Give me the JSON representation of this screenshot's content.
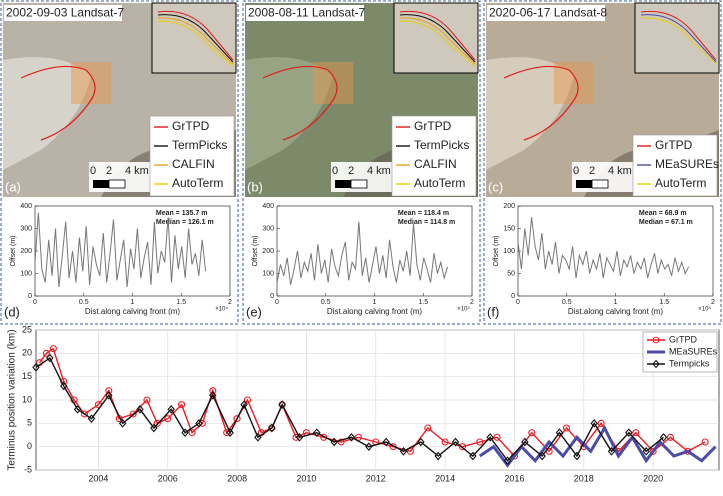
{
  "image_panels": [
    {
      "caption": "2002-09-03 Landsat-7",
      "label": "(a)",
      "scale_labels": [
        "0",
        "2",
        "4 km"
      ],
      "legend": [
        {
          "name": "GrTPD",
          "color": "#e41a1c"
        },
        {
          "name": "TermPicks",
          "color": "#111111"
        },
        {
          "name": "CALFIN",
          "color": "#e8a317"
        },
        {
          "name": "AutoTerm",
          "color": "#e6d200"
        }
      ]
    },
    {
      "caption": "2008-08-11 Landsat-7",
      "label": "(b)",
      "scale_labels": [
        "0",
        "2",
        "4 km"
      ],
      "legend": [
        {
          "name": "GrTPD",
          "color": "#e41a1c"
        },
        {
          "name": "TermPicks",
          "color": "#111111"
        },
        {
          "name": "CALFIN",
          "color": "#e8a317"
        },
        {
          "name": "AutoTerm",
          "color": "#e6d200"
        }
      ]
    },
    {
      "caption": "2020-06-17 Landsat-8",
      "label": "(c)",
      "scale_labels": [
        "0",
        "2",
        "4 km"
      ],
      "legend": [
        {
          "name": "GrTPD",
          "color": "#e41a1c"
        },
        {
          "name": "MEaSUREs",
          "color": "#4b4ba8"
        },
        {
          "name": "AutoTerm",
          "color": "#e6d200"
        }
      ]
    }
  ],
  "chart_data": [
    {
      "type": "line",
      "panel_label": "(d)",
      "x_label": "Dist.along calving front (m)",
      "y_label": "Offset (m)",
      "x_multiplier": "×10⁴",
      "annotations": [
        "Mean = 135.7 m",
        "Median = 126.1 m"
      ],
      "color": "#777777",
      "xlim": [
        0,
        20000
      ],
      "xticks": [
        0,
        {
          "value": 5000,
          "label": "0.5"
        },
        {
          "value": 10000,
          "label": "1"
        },
        {
          "value": 15000,
          "label": "1.5"
        },
        {
          "value": 20000,
          "label": "2"
        }
      ],
      "ylim": [
        0,
        400
      ],
      "yticks": [
        0,
        100,
        200,
        300,
        400
      ],
      "x": [
        0,
        350,
        700,
        1050,
        1400,
        1750,
        2100,
        2450,
        2800,
        3150,
        3500,
        3850,
        4200,
        4550,
        4900,
        5250,
        5600,
        5950,
        6300,
        6650,
        7000,
        7350,
        7700,
        8050,
        8400,
        8750,
        9100,
        9450,
        9800,
        10150,
        10500,
        10850,
        11200,
        11550,
        11900,
        12250,
        12600,
        12950,
        13300,
        13650,
        14000,
        14350,
        14700,
        15050,
        15400,
        15750,
        16100,
        16450,
        16800,
        17150,
        17500
      ],
      "values": [
        150,
        370,
        120,
        60,
        250,
        90,
        300,
        40,
        180,
        330,
        80,
        200,
        60,
        260,
        110,
        310,
        50,
        220,
        140,
        90,
        280,
        60,
        190,
        340,
        70,
        160,
        250,
        40,
        210,
        120,
        300,
        80,
        170,
        240,
        50,
        330,
        100,
        200,
        150,
        350,
        60,
        270,
        120,
        220,
        80,
        300,
        140,
        190,
        90,
        250,
        110
      ]
    },
    {
      "type": "line",
      "panel_label": "(e)",
      "x_label": "Dist.along calving front (m)",
      "y_label": "Offset (m)",
      "x_multiplier": "×10⁴",
      "annotations": [
        "Mean = 118.4 m",
        "Median = 114.8 m"
      ],
      "color": "#777777",
      "xlim": [
        0,
        20000
      ],
      "xticks": [
        0,
        {
          "value": 5000,
          "label": "0.5"
        },
        {
          "value": 10000,
          "label": "1"
        },
        {
          "value": 15000,
          "label": "1.5"
        },
        {
          "value": 20000,
          "label": "2"
        }
      ],
      "ylim": [
        0,
        400
      ],
      "yticks": [
        0,
        100,
        200,
        300,
        400
      ],
      "x": [
        0,
        350,
        700,
        1050,
        1400,
        1750,
        2100,
        2450,
        2800,
        3150,
        3500,
        3850,
        4200,
        4550,
        4900,
        5250,
        5600,
        5950,
        6300,
        6650,
        7000,
        7350,
        7700,
        8050,
        8400,
        8750,
        9100,
        9450,
        9800,
        10150,
        10500,
        10850,
        11200,
        11550,
        11900,
        12250,
        12600,
        12950,
        13300,
        13650,
        14000,
        14350,
        14700,
        15050,
        15400,
        15750,
        16100,
        16450,
        16800,
        17150,
        17500
      ],
      "values": [
        60,
        140,
        90,
        170,
        50,
        120,
        200,
        80,
        150,
        110,
        190,
        70,
        230,
        100,
        160,
        60,
        210,
        130,
        90,
        180,
        240,
        70,
        150,
        120,
        330,
        90,
        170,
        60,
        140,
        220,
        100,
        180,
        80,
        250,
        130,
        60,
        160,
        110,
        200,
        90,
        320,
        140,
        70,
        170,
        120,
        60,
        190,
        100,
        150,
        80,
        130
      ]
    },
    {
      "type": "line",
      "panel_label": "(f)",
      "x_label": "Dist.along calving front (m)",
      "y_label": "Offset (m)",
      "x_multiplier": "×10⁴",
      "annotations": [
        "Mean = 68.9 m",
        "Median = 67.1 m"
      ],
      "color": "#777777",
      "xlim": [
        0,
        20000
      ],
      "xticks": [
        0,
        {
          "value": 5000,
          "label": "0.5"
        },
        {
          "value": 10000,
          "label": "1"
        },
        {
          "value": 15000,
          "label": "1.5"
        },
        {
          "value": 20000,
          "label": "2"
        }
      ],
      "ylim": [
        0,
        200
      ],
      "yticks": [
        0,
        50,
        100,
        150,
        200
      ],
      "x": [
        0,
        350,
        700,
        1050,
        1400,
        1750,
        2100,
        2450,
        2800,
        3150,
        3500,
        3850,
        4200,
        4550,
        4900,
        5250,
        5600,
        5950,
        6300,
        6650,
        7000,
        7350,
        7700,
        8050,
        8400,
        8750,
        9100,
        9450,
        9800,
        10150,
        10500,
        10850,
        11200,
        11550,
        11900,
        12250,
        12600,
        12950,
        13300,
        13650,
        14000,
        14350,
        14700,
        15050,
        15400,
        15750,
        16100,
        16450,
        16800,
        17150,
        17500
      ],
      "values": [
        120,
        60,
        150,
        90,
        175,
        110,
        80,
        140,
        60,
        100,
        70,
        120,
        50,
        90,
        80,
        60,
        110,
        40,
        90,
        70,
        100,
        50,
        80,
        60,
        95,
        40,
        85,
        70,
        55,
        100,
        45,
        80,
        65,
        90,
        50,
        75,
        60,
        85,
        40,
        70,
        95,
        50,
        80,
        60,
        70,
        45,
        85,
        55,
        75,
        50,
        65
      ]
    },
    {
      "type": "timeseries",
      "y_label": "Terminus position variation (km)",
      "grid": true,
      "legend": "upper right",
      "xlim": [
        2002.2,
        2021.9
      ],
      "xticks": [
        2004,
        2006,
        2008,
        2010,
        2012,
        2014,
        2016,
        2018,
        2020
      ],
      "ylim": [
        -5,
        25
      ],
      "yticks": [
        -5,
        0,
        5,
        10,
        15,
        20,
        25
      ],
      "series": [
        {
          "name": "GrTPD",
          "color": "#ee1c24",
          "marker": "circle",
          "x": [
            2002.3,
            2002.5,
            2002.7,
            2003.0,
            2003.3,
            2003.6,
            2004.0,
            2004.3,
            2004.6,
            2005.0,
            2005.4,
            2005.7,
            2006.0,
            2006.4,
            2006.7,
            2007.0,
            2007.3,
            2007.7,
            2008.0,
            2008.3,
            2008.7,
            2009.0,
            2009.3,
            2009.7,
            2010.0,
            2010.5,
            2011.0,
            2011.5,
            2012.0,
            2012.5,
            2013.0,
            2013.5,
            2014.0,
            2014.5,
            2015.0,
            2015.5,
            2016.0,
            2016.5,
            2017.0,
            2017.5,
            2018.0,
            2018.5,
            2019.0,
            2019.5,
            2020.0,
            2020.5,
            2021.0,
            2021.5
          ],
          "values": [
            18,
            20,
            21,
            14,
            10,
            7,
            9,
            12,
            6,
            7,
            10,
            5,
            6,
            9,
            3,
            5,
            12,
            3,
            6,
            10,
            3,
            4,
            9,
            2,
            3,
            2,
            1,
            2,
            1,
            0,
            -1,
            4,
            1,
            0,
            1,
            2,
            -2,
            3,
            -1,
            4,
            0,
            5,
            -1,
            3,
            -1,
            2,
            -1,
            1
          ]
        },
        {
          "name": "MEaSUREs",
          "color": "#4b4ba8",
          "marker": "none",
          "x": [
            2015.0,
            2015.4,
            2015.8,
            2016.2,
            2016.6,
            2017.0,
            2017.4,
            2017.8,
            2018.2,
            2018.6,
            2019.0,
            2019.4,
            2019.8,
            2020.2,
            2020.6,
            2021.0,
            2021.4,
            2021.8
          ],
          "values": [
            -2,
            0,
            -4,
            0,
            -3,
            1,
            -2,
            2,
            -1,
            4,
            -2,
            2,
            -3,
            1,
            -2,
            -1,
            -3,
            0
          ]
        },
        {
          "name": "Termpicks",
          "color": "#111111",
          "marker": "diamond",
          "x": [
            2002.2,
            2002.6,
            2003.0,
            2003.4,
            2003.8,
            2004.3,
            2004.7,
            2005.2,
            2005.6,
            2006.1,
            2006.5,
            2006.9,
            2007.3,
            2007.8,
            2008.2,
            2008.6,
            2009.0,
            2009.3,
            2009.8,
            2010.3,
            2010.8,
            2011.3,
            2011.8,
            2012.3,
            2012.8,
            2013.3,
            2013.8,
            2014.3,
            2014.8,
            2015.3,
            2015.8,
            2016.3,
            2016.8,
            2017.3,
            2017.8,
            2018.3,
            2018.8,
            2019.3,
            2019.8,
            2020.3
          ],
          "values": [
            17,
            19,
            13,
            8,
            6,
            11,
            5,
            8,
            4,
            8,
            3,
            5,
            11,
            3,
            9,
            2,
            4,
            9,
            2,
            3,
            1,
            2,
            0,
            1,
            -1,
            1,
            -2,
            1,
            -2,
            2,
            -3,
            1,
            -2,
            3,
            -2,
            5,
            -1,
            3,
            -1,
            2
          ]
        }
      ]
    }
  ]
}
